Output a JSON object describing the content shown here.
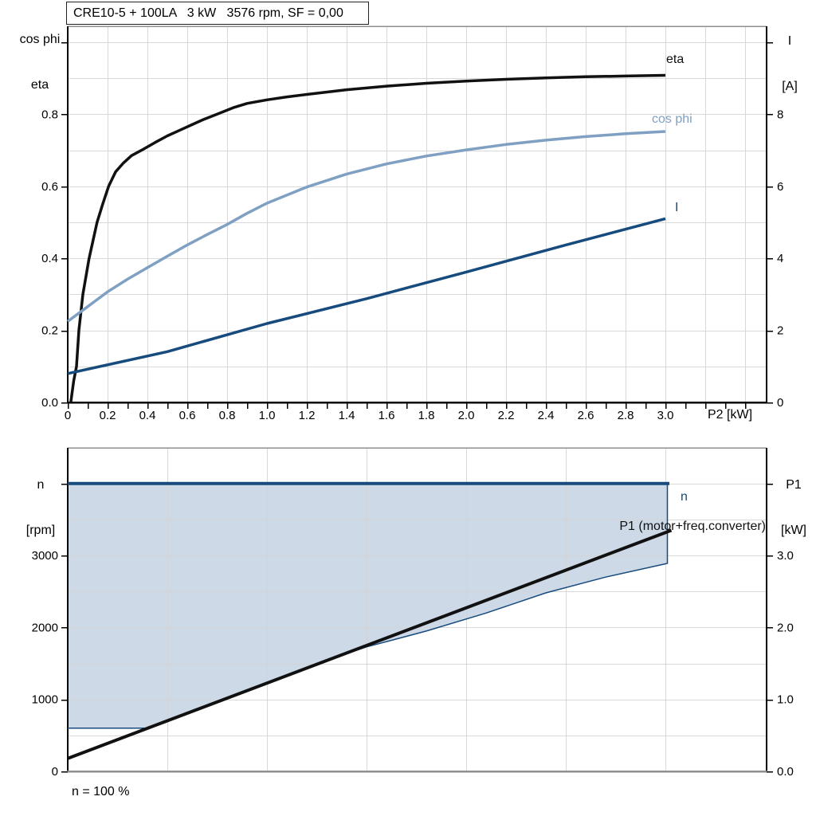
{
  "colors": {
    "curve_black": "#111111",
    "dark_blue": "#174a7d",
    "light_blue": "#7fa0c2",
    "area_fill": "#cdd9e6",
    "grid": "#d2d2d2",
    "axis_black": "#000000",
    "axis_gray": "#8f8f8f",
    "text": "#000000"
  },
  "chart_data": [
    {
      "type": "line",
      "name": "motor-performance-chart",
      "title": "CRE10-5 + 100LA   3 kW   3576 rpm, SF = 0,00",
      "y_left_title": [
        "cos phi",
        "eta"
      ],
      "y_right_title": [
        "I",
        "[A]"
      ],
      "x_title": "P2 [kW]",
      "x_range": [
        0,
        3.508
      ],
      "y_left_range": [
        0,
        1.0441
      ],
      "y_right_range": [
        0,
        10.441
      ],
      "grid": {
        "x_step": 0.2,
        "y_step": 0.1
      },
      "x_minor_step": 0.1,
      "x_ticks": [
        {
          "v": 0,
          "label": "0"
        },
        {
          "v": 0.2,
          "label": "0.2"
        },
        {
          "v": 0.4,
          "label": "0.4"
        },
        {
          "v": 0.6,
          "label": "0.6"
        },
        {
          "v": 0.8,
          "label": "0.8"
        },
        {
          "v": 1.0,
          "label": "1.0"
        },
        {
          "v": 1.2,
          "label": "1.2"
        },
        {
          "v": 1.4,
          "label": "1.4"
        },
        {
          "v": 1.6,
          "label": "1.6"
        },
        {
          "v": 1.8,
          "label": "1.8"
        },
        {
          "v": 2.0,
          "label": "2.0"
        },
        {
          "v": 2.2,
          "label": "2.2"
        },
        {
          "v": 2.4,
          "label": "2.4"
        },
        {
          "v": 2.6,
          "label": "2.6"
        },
        {
          "v": 2.8,
          "label": "2.8"
        },
        {
          "v": 3.0,
          "label": "3.0"
        }
      ],
      "y_left_ticks": [
        {
          "v": 0.0,
          "label": "0.0"
        },
        {
          "v": 0.2,
          "label": "0.2"
        },
        {
          "v": 0.4,
          "label": "0.4"
        },
        {
          "v": 0.6,
          "label": "0.6"
        },
        {
          "v": 0.8,
          "label": "0.8"
        },
        {
          "v": 1.0
        }
      ],
      "y_right_ticks": [
        {
          "v": 0,
          "label": "0"
        },
        {
          "v": 2,
          "label": "2"
        },
        {
          "v": 4,
          "label": "4"
        },
        {
          "v": 6,
          "label": "6"
        },
        {
          "v": 8,
          "label": "8"
        },
        {
          "v": 10
        }
      ],
      "series": [
        {
          "name": "eta-curve",
          "label": "eta",
          "axis": "left",
          "color": "curve_black",
          "width": 3.5,
          "points": [
            [
              0.015,
              0
            ],
            [
              0.03,
              0.06
            ],
            [
              0.044,
              0.1
            ],
            [
              0.056,
              0.2
            ],
            [
              0.076,
              0.3
            ],
            [
              0.107,
              0.4
            ],
            [
              0.147,
              0.5
            ],
            [
              0.175,
              0.55
            ],
            [
              0.205,
              0.6
            ],
            [
              0.24,
              0.64
            ],
            [
              0.28,
              0.665
            ],
            [
              0.32,
              0.685
            ],
            [
              0.37,
              0.7
            ],
            [
              0.44,
              0.722
            ],
            [
              0.5,
              0.74
            ],
            [
              0.56,
              0.755
            ],
            [
              0.62,
              0.77
            ],
            [
              0.68,
              0.785
            ],
            [
              0.75,
              0.8
            ],
            [
              0.83,
              0.818
            ],
            [
              0.9,
              0.83
            ],
            [
              1.0,
              0.84
            ],
            [
              1.1,
              0.848
            ],
            [
              1.2,
              0.855
            ],
            [
              1.4,
              0.868
            ],
            [
              1.6,
              0.878
            ],
            [
              1.8,
              0.886
            ],
            [
              2.0,
              0.892
            ],
            [
              2.2,
              0.897
            ],
            [
              2.4,
              0.901
            ],
            [
              2.6,
              0.904
            ],
            [
              2.8,
              0.906
            ],
            [
              3.0,
              0.908
            ]
          ]
        },
        {
          "name": "cos-phi-curve",
          "label": "cos phi",
          "axis": "left",
          "color": "light_blue",
          "width": 3.5,
          "points": [
            [
              0,
              0.225
            ],
            [
              0.1,
              0.266
            ],
            [
              0.2,
              0.307
            ],
            [
              0.3,
              0.342
            ],
            [
              0.4,
              0.374
            ],
            [
              0.5,
              0.406
            ],
            [
              0.6,
              0.437
            ],
            [
              0.7,
              0.466
            ],
            [
              0.8,
              0.494
            ],
            [
              0.9,
              0.525
            ],
            [
              1.0,
              0.553
            ],
            [
              1.2,
              0.598
            ],
            [
              1.4,
              0.634
            ],
            [
              1.6,
              0.662
            ],
            [
              1.8,
              0.684
            ],
            [
              2.0,
              0.701
            ],
            [
              2.2,
              0.716
            ],
            [
              2.4,
              0.728
            ],
            [
              2.6,
              0.738
            ],
            [
              2.8,
              0.746
            ],
            [
              3.0,
              0.752
            ]
          ]
        },
        {
          "name": "current-curve",
          "label": "I",
          "axis": "right",
          "color": "dark_blue",
          "width": 3.5,
          "points": [
            [
              0,
              0.8
            ],
            [
              0.5,
              1.41
            ],
            [
              1.0,
              2.19
            ],
            [
              1.5,
              2.88
            ],
            [
              2.0,
              3.62
            ],
            [
              2.5,
              4.37
            ],
            [
              3.0,
              5.1
            ]
          ]
        }
      ]
    },
    {
      "type": "line",
      "name": "speed-envelope-chart",
      "y_left_title": [
        "n",
        "[rpm]"
      ],
      "y_right_title": [
        "P1",
        "[kW]"
      ],
      "footnote": "n = 100 %",
      "x_range": [
        0,
        3.508
      ],
      "y_left_range": [
        0,
        4496
      ],
      "y_right_range": [
        0,
        4.496
      ],
      "grid": {
        "x_step": 0.5,
        "y_step": 500
      },
      "x_ticks": [],
      "y_left_ticks": [
        {
          "v": 0,
          "label": "0"
        },
        {
          "v": 1000,
          "label": "1000"
        },
        {
          "v": 2000,
          "label": "2000"
        },
        {
          "v": 3000,
          "label": "3000"
        },
        {
          "v": 4000
        }
      ],
      "y_right_ticks": [
        {
          "v": 0,
          "label": "0.0"
        },
        {
          "v": 1,
          "label": "1.0"
        },
        {
          "v": 2,
          "label": "2.0"
        },
        {
          "v": 3,
          "label": "3.0"
        },
        {
          "v": 4
        }
      ],
      "area": {
        "name": "operating-envelope",
        "color": "area_fill",
        "points": [
          [
            0,
            4000
          ],
          [
            3.01,
            4000
          ],
          [
            3.01,
            2890
          ],
          [
            2.7,
            2700
          ],
          [
            2.4,
            2480
          ],
          [
            2.1,
            2200
          ],
          [
            1.8,
            1950
          ],
          [
            1.5,
            1730
          ],
          [
            1.3,
            1545
          ],
          [
            1.0,
            1230
          ],
          [
            0.7,
            915
          ],
          [
            0.4,
            600
          ],
          [
            0,
            600
          ]
        ]
      },
      "series": [
        {
          "name": "envelope-boundary",
          "axis": "left",
          "color": "dark_blue",
          "width": 1.5,
          "points": [
            [
              0,
              600
            ],
            [
              0.4,
              600
            ],
            [
              0.7,
              915
            ],
            [
              1.0,
              1230
            ],
            [
              1.3,
              1545
            ],
            [
              1.5,
              1730
            ],
            [
              1.8,
              1950
            ],
            [
              2.1,
              2200
            ],
            [
              2.4,
              2480
            ],
            [
              2.7,
              2700
            ],
            [
              3.01,
              2890
            ],
            [
              3.01,
              4000
            ]
          ]
        },
        {
          "name": "max-speed-line",
          "label": "n",
          "axis": "left",
          "color": "dark_blue",
          "width": 4,
          "points": [
            [
              0,
              4000
            ],
            [
              3.02,
              4000
            ]
          ]
        },
        {
          "name": "p1-line",
          "label": "P1 (motor+freq.converter)",
          "axis": "right",
          "color": "curve_black",
          "width": 4,
          "points": [
            [
              0,
              0.18
            ],
            [
              3.03,
              3.35
            ]
          ]
        }
      ]
    }
  ]
}
